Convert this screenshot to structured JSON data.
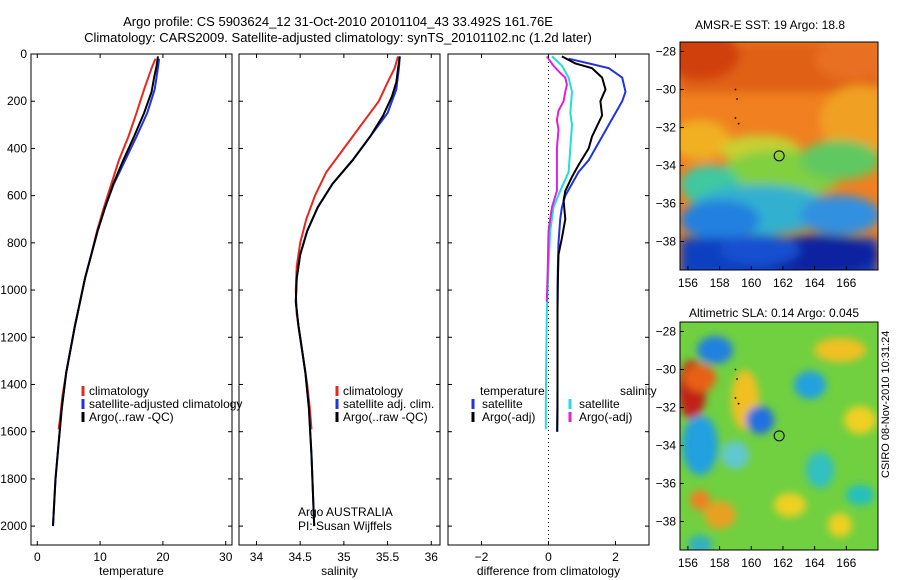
{
  "header": {
    "title_line1": "Argo profile: CS 5903624_12 31-Oct-2010 20101104_43 33.492S 161.76E",
    "title_line2": "Climatology: CARS2009. Satellite-adjusted climatology: synTS_20101102.nc (1.2d later)"
  },
  "side_label": "CSIRO 08-Nov-2010 10:31:24",
  "colors": {
    "climatology": "#e8281e",
    "satellite": "#2233dd",
    "argo": "#000000",
    "sal_satellite": "#22dddd",
    "sal_argo": "#dd22dd"
  },
  "chart_data": [
    {
      "name": "temperature-profile",
      "type": "line",
      "xlabel": "temperature",
      "ylabel": "",
      "xlim": [
        -1,
        31
      ],
      "ylim": [
        2080,
        0
      ],
      "y_inverted": true,
      "xticks": [
        0,
        10,
        20,
        30
      ],
      "yticks": [
        0,
        200,
        400,
        600,
        800,
        1000,
        1200,
        1400,
        1600,
        1800,
        2000
      ],
      "legend": {
        "placement": "lower-middle",
        "entries": [
          {
            "label": "climatology",
            "color": "#e8281e"
          },
          {
            "label": "satellite-adjusted climatology",
            "color": "#2233dd"
          },
          {
            "label": "Argo(..raw -QC)",
            "color": "#000000"
          }
        ]
      },
      "series": [
        {
          "name": "climatology",
          "color": "#e8281e",
          "points": [
            [
              18.8,
              20
            ],
            [
              18.2,
              60
            ],
            [
              17.0,
              150
            ],
            [
              15.8,
              250
            ],
            [
              14.5,
              350
            ],
            [
              13.0,
              450
            ],
            [
              11.8,
              550
            ],
            [
              10.6,
              650
            ],
            [
              9.5,
              750
            ],
            [
              8.6,
              850
            ],
            [
              7.6,
              950
            ],
            [
              6.8,
              1050
            ],
            [
              6.0,
              1150
            ],
            [
              5.3,
              1250
            ],
            [
              4.6,
              1350
            ],
            [
              4.0,
              1450
            ],
            [
              3.6,
              1550
            ],
            [
              3.4,
              1590
            ]
          ]
        },
        {
          "name": "satellite-adjusted climatology",
          "color": "#2233dd",
          "points": [
            [
              19.4,
              20
            ],
            [
              19.2,
              60
            ],
            [
              18.7,
              150
            ],
            [
              17.5,
              250
            ],
            [
              15.8,
              350
            ],
            [
              14.0,
              450
            ],
            [
              12.2,
              550
            ],
            [
              10.8,
              650
            ],
            [
              9.6,
              750
            ],
            [
              8.6,
              850
            ],
            [
              7.6,
              950
            ],
            [
              6.8,
              1050
            ],
            [
              6.0,
              1150
            ],
            [
              5.3,
              1250
            ],
            [
              4.6,
              1350
            ],
            [
              3.9,
              1500
            ],
            [
              3.4,
              1650
            ],
            [
              2.9,
              1800
            ],
            [
              2.6,
              1950
            ],
            [
              2.5,
              2000
            ]
          ]
        },
        {
          "name": "Argo(..raw -QC)",
          "color": "#000000",
          "points": [
            [
              19.2,
              10
            ],
            [
              19.0,
              50
            ],
            [
              18.6,
              100
            ],
            [
              18.2,
              160
            ],
            [
              17.0,
              250
            ],
            [
              15.4,
              350
            ],
            [
              13.7,
              450
            ],
            [
              12.1,
              550
            ],
            [
              10.8,
              650
            ],
            [
              9.6,
              750
            ],
            [
              8.6,
              850
            ],
            [
              7.6,
              950
            ],
            [
              6.8,
              1050
            ],
            [
              6.0,
              1150
            ],
            [
              5.3,
              1250
            ],
            [
              4.6,
              1350
            ],
            [
              3.9,
              1500
            ],
            [
              3.4,
              1650
            ],
            [
              2.9,
              1800
            ],
            [
              2.6,
              1950
            ],
            [
              2.5,
              2000
            ]
          ]
        }
      ]
    },
    {
      "name": "salinity-profile",
      "type": "line",
      "xlabel": "salinity",
      "ylabel": "",
      "xlim": [
        33.8,
        36.1
      ],
      "ylim": [
        2080,
        0
      ],
      "y_inverted": true,
      "xticks": [
        34,
        34.5,
        35,
        35.5,
        36
      ],
      "legend": {
        "placement": "lower-middle",
        "entries": [
          {
            "label": "climatology",
            "color": "#e8281e"
          },
          {
            "label": "satellite adj. clim.",
            "color": "#2233dd"
          },
          {
            "label": "Argo(..raw -QC)",
            "color": "#000000"
          }
        ]
      },
      "annotation": {
        "line1": "Argo AUSTRALIA",
        "line2": "PI: Susan Wijffels"
      },
      "series": [
        {
          "name": "climatology",
          "color": "#e8281e",
          "points": [
            [
              35.62,
              10
            ],
            [
              35.58,
              60
            ],
            [
              35.5,
              120
            ],
            [
              35.4,
              200
            ],
            [
              35.2,
              300
            ],
            [
              35.0,
              400
            ],
            [
              34.8,
              500
            ],
            [
              34.67,
              600
            ],
            [
              34.57,
              700
            ],
            [
              34.5,
              800
            ],
            [
              34.46,
              900
            ],
            [
              34.45,
              1000
            ],
            [
              34.46,
              1100
            ],
            [
              34.5,
              1200
            ],
            [
              34.54,
              1300
            ],
            [
              34.58,
              1400
            ],
            [
              34.61,
              1500
            ],
            [
              34.63,
              1590
            ]
          ]
        },
        {
          "name": "satellite adj. clim.",
          "color": "#2233dd",
          "points": [
            [
              35.64,
              10
            ],
            [
              35.63,
              60
            ],
            [
              35.6,
              150
            ],
            [
              35.5,
              250
            ],
            [
              35.3,
              350
            ],
            [
              35.1,
              450
            ],
            [
              34.87,
              550
            ],
            [
              34.7,
              650
            ],
            [
              34.58,
              750
            ],
            [
              34.5,
              850
            ],
            [
              34.46,
              950
            ],
            [
              34.45,
              1050
            ],
            [
              34.48,
              1150
            ],
            [
              34.52,
              1250
            ],
            [
              34.56,
              1350
            ],
            [
              34.6,
              1500
            ],
            [
              34.63,
              1700
            ],
            [
              34.65,
              1900
            ],
            [
              34.66,
              2000
            ]
          ]
        },
        {
          "name": "Argo(..raw -QC)",
          "color": "#000000",
          "points": [
            [
              35.64,
              10
            ],
            [
              35.62,
              60
            ],
            [
              35.6,
              120
            ],
            [
              35.55,
              180
            ],
            [
              35.45,
              260
            ],
            [
              35.3,
              350
            ],
            [
              35.1,
              450
            ],
            [
              34.87,
              550
            ],
            [
              34.7,
              650
            ],
            [
              34.58,
              750
            ],
            [
              34.5,
              850
            ],
            [
              34.46,
              950
            ],
            [
              34.45,
              1050
            ],
            [
              34.48,
              1150
            ],
            [
              34.52,
              1250
            ],
            [
              34.56,
              1350
            ],
            [
              34.6,
              1500
            ],
            [
              34.63,
              1700
            ],
            [
              34.65,
              1900
            ],
            [
              34.66,
              2000
            ]
          ]
        }
      ]
    },
    {
      "name": "difference-profile",
      "type": "line",
      "xlabel": "difference from climatology",
      "ylabel": "",
      "xlim": [
        -3,
        3
      ],
      "ylim": [
        2080,
        0
      ],
      "y_inverted": true,
      "xticks": [
        -2,
        0,
        2
      ],
      "zero_line": "dotted",
      "legend": {
        "placement": "lower-middle",
        "columns": [
          {
            "header": "temperature",
            "entries": [
              {
                "label": "satellite",
                "color": "#2233dd"
              },
              {
                "label": "Argo(-adj)",
                "color": "#000000"
              }
            ]
          },
          {
            "header": "salinity",
            "entries": [
              {
                "label": "satellite",
                "color": "#22dddd"
              },
              {
                "label": "Argo(-adj)",
                "color": "#dd22dd"
              }
            ]
          }
        ]
      },
      "series": [
        {
          "name": "temperature satellite",
          "color": "#2233dd",
          "points": [
            [
              0.6,
              20
            ],
            [
              1.2,
              40
            ],
            [
              1.8,
              60
            ],
            [
              2.2,
              100
            ],
            [
              2.3,
              160
            ],
            [
              2.2,
              200
            ],
            [
              2.0,
              250
            ],
            [
              1.8,
              300
            ],
            [
              1.6,
              350
            ],
            [
              1.4,
              400
            ],
            [
              1.2,
              450
            ],
            [
              0.9,
              500
            ],
            [
              0.7,
              550
            ],
            [
              0.5,
              600
            ],
            [
              0.4,
              650
            ],
            [
              0.35,
              700
            ],
            [
              0.3,
              800
            ],
            [
              0.28,
              900
            ],
            [
              0.27,
              1000
            ],
            [
              0.27,
              1200
            ],
            [
              0.27,
              1400
            ],
            [
              0.26,
              1600
            ]
          ]
        },
        {
          "name": "temperature Argo(-adj)",
          "color": "#000000",
          "points": [
            [
              0.4,
              10
            ],
            [
              0.8,
              40
            ],
            [
              1.3,
              60
            ],
            [
              1.6,
              100
            ],
            [
              1.7,
              150
            ],
            [
              1.55,
              200
            ],
            [
              1.6,
              260
            ],
            [
              1.3,
              350
            ],
            [
              1.2,
              400
            ],
            [
              0.9,
              470
            ],
            [
              0.7,
              520
            ],
            [
              0.5,
              580
            ],
            [
              0.45,
              620
            ],
            [
              0.5,
              700
            ],
            [
              0.4,
              780
            ],
            [
              0.3,
              850
            ],
            [
              0.28,
              950
            ],
            [
              0.27,
              1100
            ],
            [
              0.27,
              1300
            ],
            [
              0.27,
              1500
            ],
            [
              0.26,
              1600
            ]
          ]
        },
        {
          "name": "salinity satellite",
          "color": "#22dddd",
          "points": [
            [
              0.1,
              10
            ],
            [
              0.4,
              50
            ],
            [
              0.6,
              100
            ],
            [
              0.7,
              160
            ],
            [
              0.65,
              250
            ],
            [
              0.7,
              300
            ],
            [
              0.65,
              400
            ],
            [
              0.6,
              500
            ],
            [
              0.35,
              580
            ],
            [
              0.15,
              650
            ],
            [
              0.05,
              750
            ],
            [
              0.0,
              900
            ],
            [
              -0.05,
              1100
            ],
            [
              -0.07,
              1300
            ],
            [
              -0.08,
              1500
            ],
            [
              -0.08,
              1590
            ]
          ]
        },
        {
          "name": "salinity Argo(-adj)",
          "color": "#dd22dd",
          "points": [
            [
              -0.05,
              10
            ],
            [
              0.15,
              50
            ],
            [
              0.35,
              80
            ],
            [
              0.5,
              100
            ],
            [
              0.55,
              130
            ],
            [
              0.5,
              160
            ],
            [
              0.45,
              200
            ],
            [
              0.3,
              240
            ],
            [
              0.25,
              280
            ],
            [
              0.3,
              320
            ],
            [
              0.25,
              400
            ],
            [
              0.25,
              500
            ],
            [
              0.25,
              580
            ],
            [
              0.1,
              650
            ],
            [
              0.0,
              750
            ],
            [
              -0.02,
              900
            ],
            [
              -0.05,
              1050
            ]
          ]
        }
      ]
    },
    {
      "name": "sst-map",
      "type": "heatmap",
      "title": "AMSR-E SST: 19 Argo: 18.8",
      "xlim": [
        155.5,
        168
      ],
      "ylim": [
        -39.5,
        -27.5
      ],
      "xticks": [
        156,
        158,
        160,
        162,
        164,
        166
      ],
      "yticks": [
        -28,
        -30,
        -32,
        -34,
        -36,
        -38
      ],
      "marker": {
        "lon": 161.76,
        "lat": -33.492
      },
      "track": [
        [
          159.0,
          -30.0
        ],
        [
          159.1,
          -30.5
        ],
        [
          159.0,
          -31.5
        ],
        [
          159.2,
          -31.8
        ]
      ]
    },
    {
      "name": "sla-map",
      "type": "heatmap",
      "title": "Altimetric SLA: 0.14 Argo: 0.045",
      "xlim": [
        155.5,
        168
      ],
      "ylim": [
        -39.5,
        -27.5
      ],
      "xticks": [
        156,
        158,
        160,
        162,
        164,
        166
      ],
      "yticks": [
        -28,
        -30,
        -32,
        -34,
        -36,
        -38
      ],
      "marker": {
        "lon": 161.76,
        "lat": -33.492
      },
      "track": [
        [
          159.0,
          -30.0
        ],
        [
          159.1,
          -30.5
        ],
        [
          159.0,
          -31.5
        ],
        [
          159.2,
          -31.8
        ]
      ]
    }
  ]
}
